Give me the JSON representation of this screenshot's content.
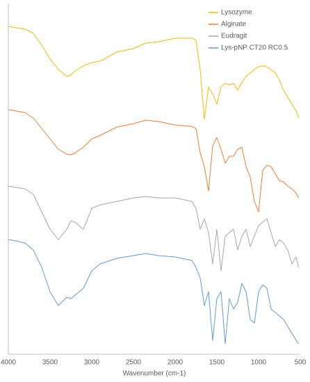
{
  "chart_data": {
    "type": "line",
    "x": [
      4000,
      3900,
      3800,
      3700,
      3600,
      3500,
      3400,
      3300,
      3250,
      3200,
      3100,
      3000,
      2900,
      2700,
      2500,
      2350,
      2200,
      2000,
      1800,
      1750,
      1700,
      1650,
      1600,
      1550,
      1500,
      1450,
      1400,
      1350,
      1300,
      1250,
      1200,
      1150,
      1100,
      1050,
      1000,
      950,
      900,
      850,
      800,
      750,
      700,
      650,
      600,
      550,
      520
    ],
    "series": [
      {
        "name": "Lysozyme",
        "color": "#f5b800",
        "values": [
          94.4,
          94,
          93.6,
          92.4,
          89,
          85,
          82,
          80,
          80.4,
          81.6,
          83,
          84,
          84.4,
          87,
          88,
          89.6,
          90,
          91,
          91,
          90.4,
          82,
          67.6,
          77,
          75,
          72,
          77,
          78,
          77.6,
          78,
          76,
          78.4,
          80,
          81,
          82,
          82.8,
          83,
          82.8,
          82,
          81,
          79,
          76,
          74,
          72,
          70,
          68
        ]
      },
      {
        "name": "Alginate",
        "color": "#ed7d31",
        "values": [
          70.4,
          70,
          69.6,
          68,
          65,
          62,
          59,
          57.6,
          57.4,
          58,
          59.6,
          62,
          63,
          65.4,
          66.4,
          67.4,
          67,
          66,
          65.6,
          65,
          58,
          54,
          47,
          60,
          62.4,
          59,
          55,
          57,
          57,
          59,
          59.6,
          54,
          51,
          44,
          41,
          53,
          54.4,
          54,
          52,
          50,
          49.6,
          48.4,
          47.6,
          46.4,
          45
        ]
      },
      {
        "name": "Eudragit",
        "color": "#a5a5a5",
        "values": [
          48.4,
          48,
          47.6,
          46,
          41,
          36,
          33,
          36,
          38.4,
          38,
          36,
          42,
          43,
          44,
          45,
          45.4,
          45,
          45,
          44,
          42,
          36,
          39,
          35,
          26,
          36,
          24,
          34,
          35,
          36,
          30,
          34,
          36,
          31,
          34,
          37,
          38,
          39,
          35,
          31,
          33,
          32,
          30,
          26,
          28,
          25
        ]
      },
      {
        "name": "Lys-pNP CT20 RC0.5",
        "color": "#5b9bd5",
        "values": [
          33,
          32.6,
          32,
          30,
          25,
          18,
          14,
          16.4,
          16,
          17,
          19,
          24,
          26,
          27.6,
          28.4,
          29,
          28.4,
          28,
          27,
          25,
          22,
          14,
          18,
          4,
          16,
          18,
          3,
          16,
          13,
          15,
          20.4,
          18,
          10,
          9,
          18,
          20,
          19,
          13,
          12,
          11,
          10,
          8,
          6,
          4,
          3
        ]
      }
    ],
    "xlabel": "Wavenumber (cm-1)",
    "xlim": [
      4000,
      500
    ],
    "xticks": [
      4000,
      3500,
      3000,
      2500,
      2000,
      1500,
      1000,
      500
    ],
    "ylim": [
      0,
      100
    ],
    "grid": false,
    "legend": "top-right"
  }
}
